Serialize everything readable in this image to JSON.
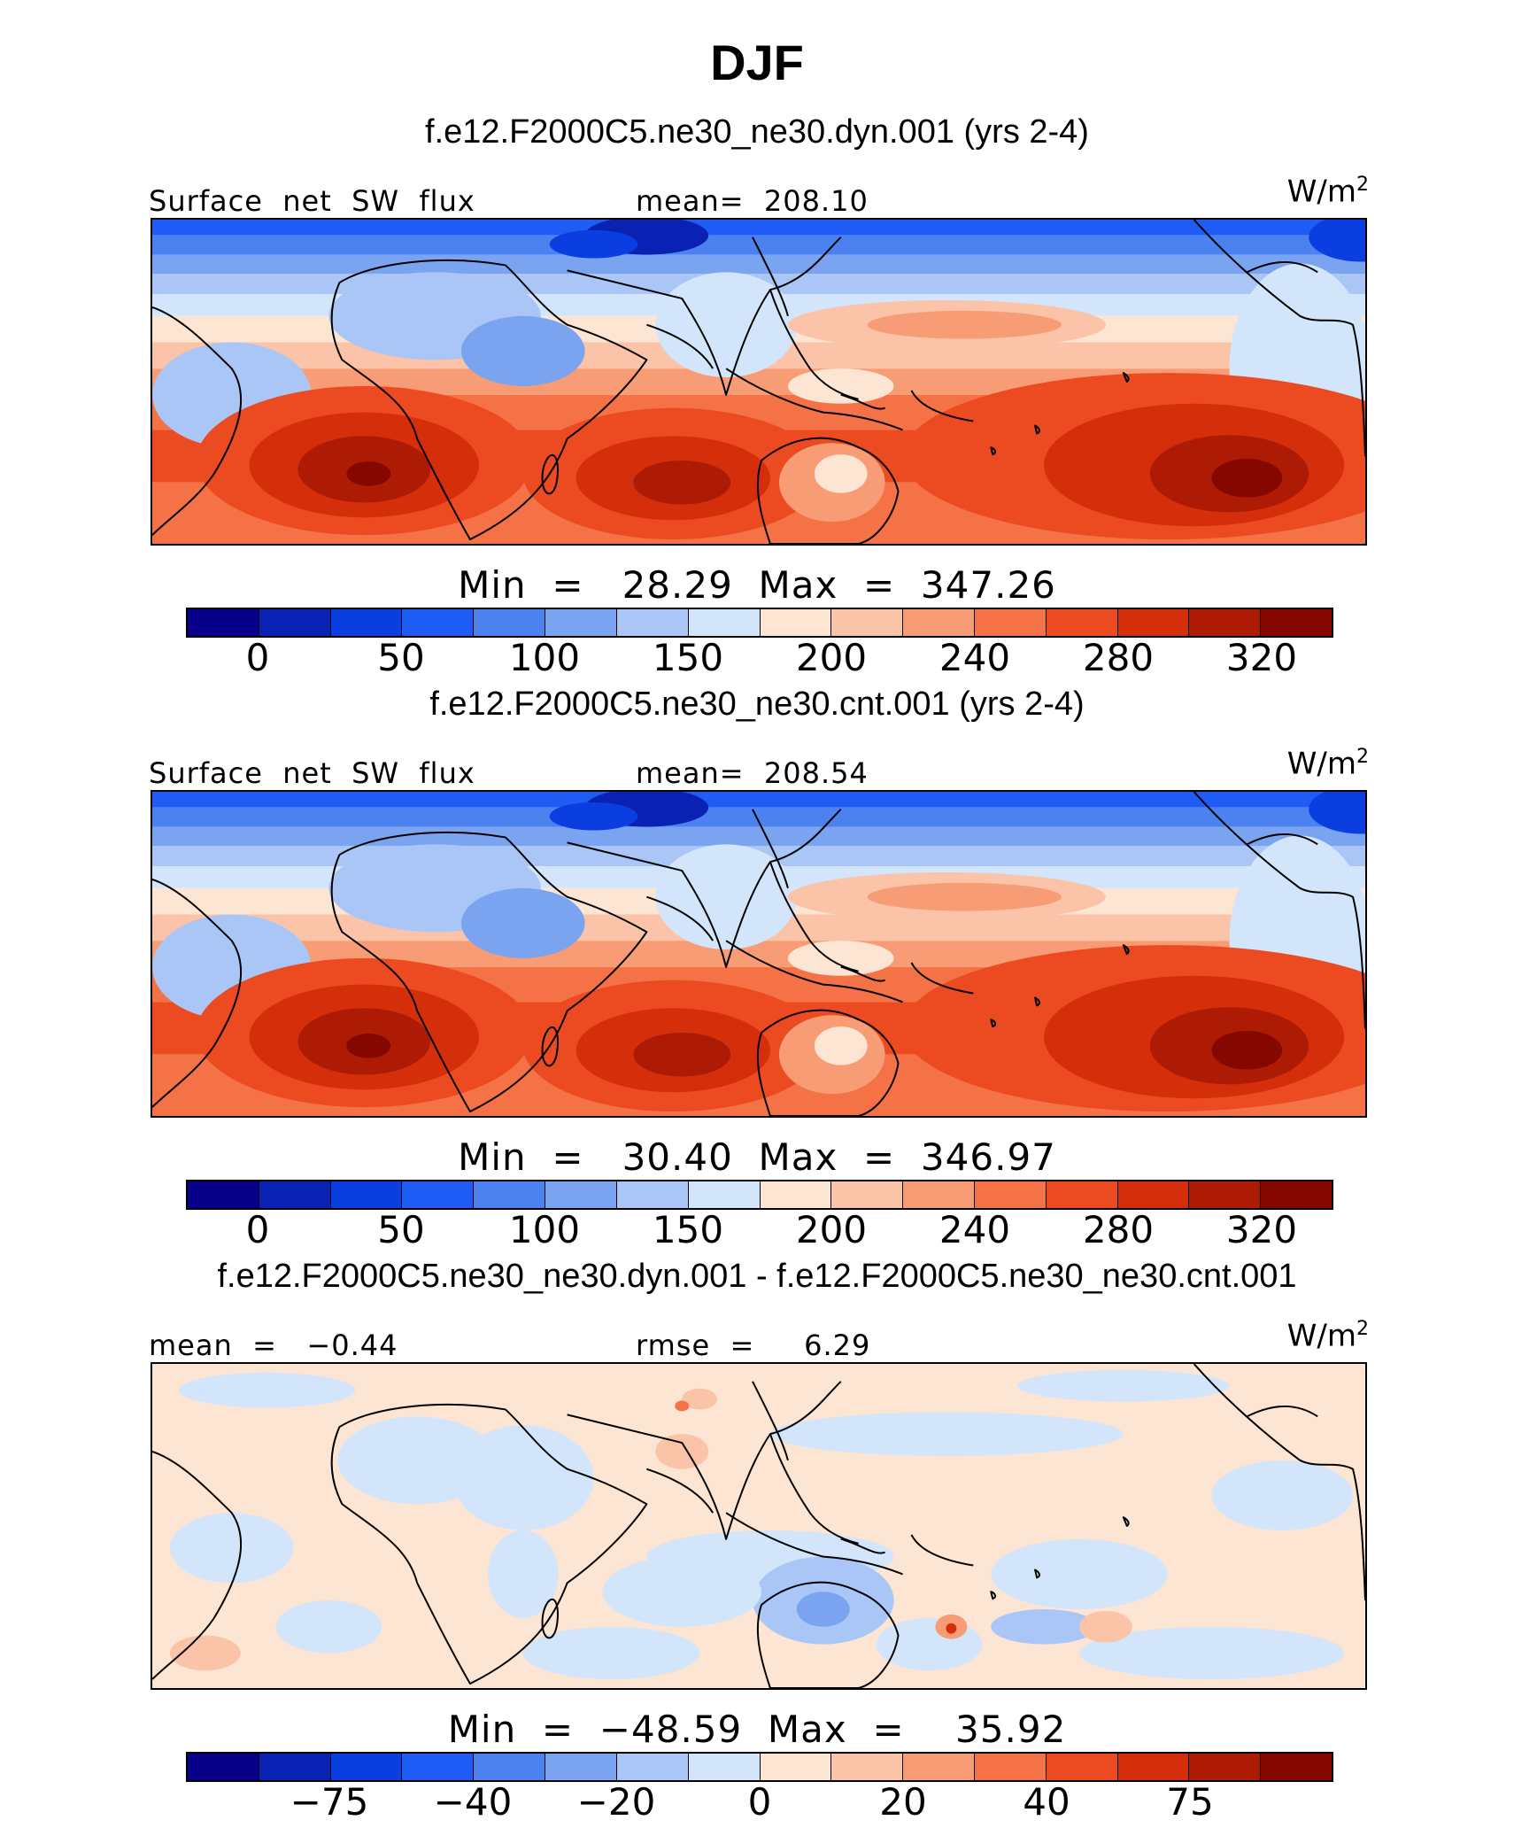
{
  "title": "DJF",
  "colors": [
    "#08008a",
    "#0a22b4",
    "#0b3ee0",
    "#1f5cf5",
    "#4b82f0",
    "#7aa4f0",
    "#a9c6f7",
    "#d3e5fa",
    "#fde5d3",
    "#fbc3a8",
    "#f89c76",
    "#f57146",
    "#ec4a20",
    "#d42e0b",
    "#ad1b05",
    "#850800"
  ],
  "panels": [
    {
      "case": "f.e12.F2000C5.ne30_ne30.dyn.001 (yrs 2-4)",
      "left_label": "Surface  net  SW  flux",
      "mid_label": "mean=  208.10",
      "unit_base": "W/m",
      "unit_exp": "2",
      "minmax": "Min  =   28.29  Max  =  347.26",
      "ticks": [
        "0",
        "50",
        "100",
        "150",
        "200",
        "240",
        "280",
        "320"
      ],
      "type": "abs"
    },
    {
      "case": "f.e12.F2000C5.ne30_ne30.cnt.001 (yrs 2-4)",
      "left_label": "Surface  net  SW  flux",
      "mid_label": "mean=  208.54",
      "unit_base": "W/m",
      "unit_exp": "2",
      "minmax": "Min  =   30.40  Max  =  346.97",
      "ticks": [
        "0",
        "50",
        "100",
        "150",
        "200",
        "240",
        "280",
        "320"
      ],
      "type": "abs"
    },
    {
      "case": "f.e12.F2000C5.ne30_ne30.dyn.001 - f.e12.F2000C5.ne30_ne30.cnt.001",
      "left_label": "mean  =   −0.44",
      "mid_label": "rmse  =     6.29",
      "unit_base": "W/m",
      "unit_exp": "2",
      "minmax": "Min  =  −48.59  Max  =    35.92",
      "ticks": [
        "−75",
        "−40",
        "−20",
        "0",
        "20",
        "40",
        "75"
      ],
      "type": "diff"
    }
  ]
}
